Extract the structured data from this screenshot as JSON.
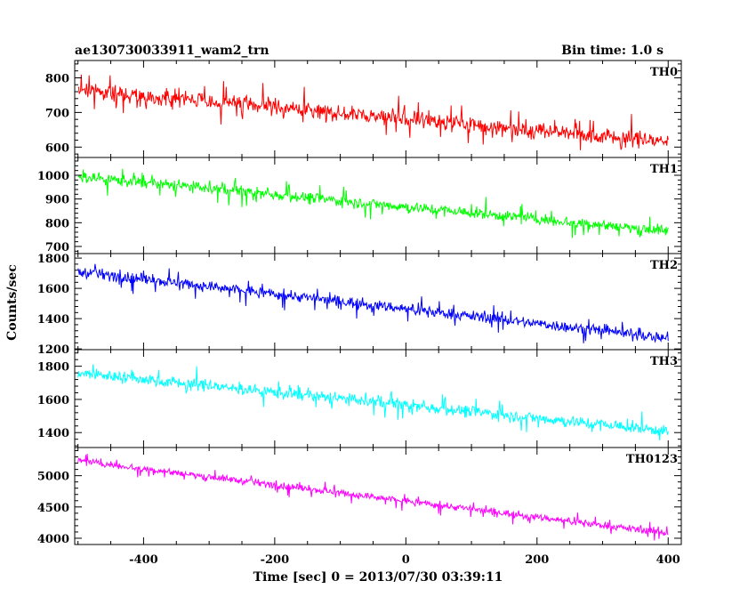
{
  "chart_data": {
    "type": "line",
    "title": "ae130730033911_wam2_trn",
    "bin_time_label": "Bin time: 1.0 s",
    "xlabel": "Time [sec] 0 = 2013/07/30 03:39:11",
    "ylabel": "Counts/sec",
    "xlim": [
      -505,
      420
    ],
    "x_ticks": [
      -400,
      -200,
      0,
      200,
      400
    ],
    "x_range_data": [
      -500,
      400
    ],
    "panels": [
      {
        "name": "TH0",
        "color": "#ff0000",
        "ylim": [
          570,
          850
        ],
        "y_ticks": [
          600,
          700,
          800
        ],
        "start_mean": 765,
        "end_mean": 615,
        "noise": 30,
        "spike": 35
      },
      {
        "name": "TH1",
        "color": "#00ff00",
        "ylim": [
          670,
          1075
        ],
        "y_ticks": [
          700,
          800,
          900,
          1000
        ],
        "start_mean": 995,
        "end_mean": 765,
        "noise": 30,
        "spike": 40
      },
      {
        "name": "TH2",
        "color": "#0000ff",
        "ylim": [
          1195,
          1830
        ],
        "y_ticks": [
          1200,
          1400,
          1600,
          1800
        ],
        "start_mean": 1710,
        "end_mean": 1270,
        "noise": 45,
        "spike": 55
      },
      {
        "name": "TH3",
        "color": "#00ffff",
        "ylim": [
          1310,
          1900
        ],
        "y_ticks": [
          1400,
          1600,
          1800
        ],
        "start_mean": 1760,
        "end_mean": 1410,
        "noise": 45,
        "spike": 55
      },
      {
        "name": "TH0123",
        "color": "#ff00ff",
        "ylim": [
          3900,
          5450
        ],
        "y_ticks": [
          4000,
          4500,
          5000
        ],
        "start_mean": 5240,
        "end_mean": 4080,
        "noise": 70,
        "spike": 90
      }
    ]
  }
}
